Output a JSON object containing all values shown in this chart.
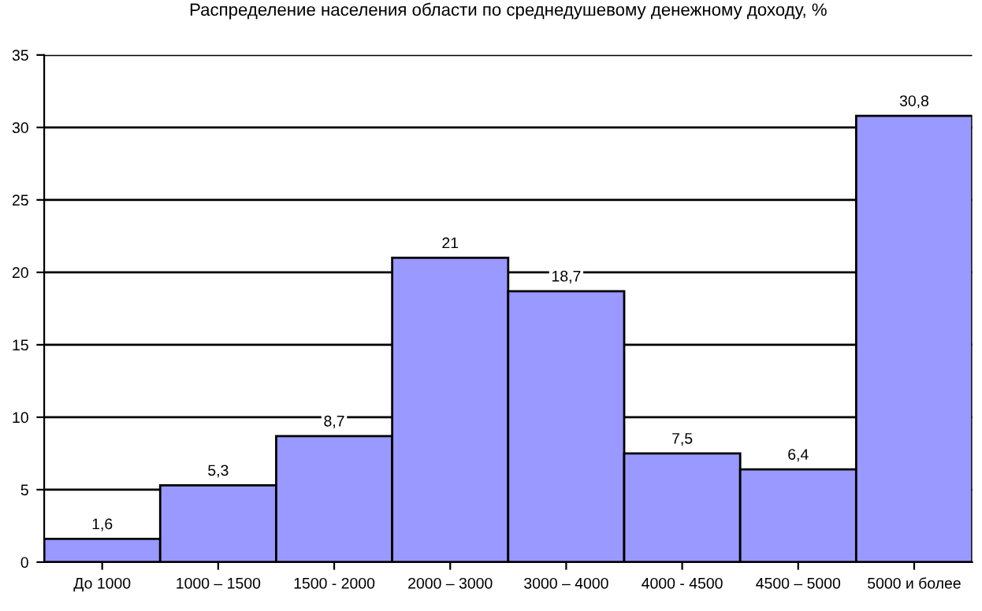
{
  "chart_data": {
    "type": "bar",
    "title": "Распределение населения области по среднедушевому денежному доходу, %",
    "categories": [
      "До 1000",
      "1000 – 1500",
      "1500 - 2000",
      "2000 – 3000",
      "3000 – 4000",
      "4000 - 4500",
      "4500 – 5000",
      "5000 и более"
    ],
    "values": [
      1.6,
      5.3,
      8.7,
      21,
      18.7,
      7.5,
      6.4,
      30.8
    ],
    "value_labels": [
      "1,6",
      "5,3",
      "8,7",
      "21",
      "18,7",
      "7,5",
      "6,4",
      "30,8"
    ],
    "color": "#9999ff",
    "ylim": [
      0,
      35
    ],
    "yticks": [
      0,
      5,
      10,
      15,
      20,
      25,
      30,
      35
    ],
    "grid": "y"
  }
}
